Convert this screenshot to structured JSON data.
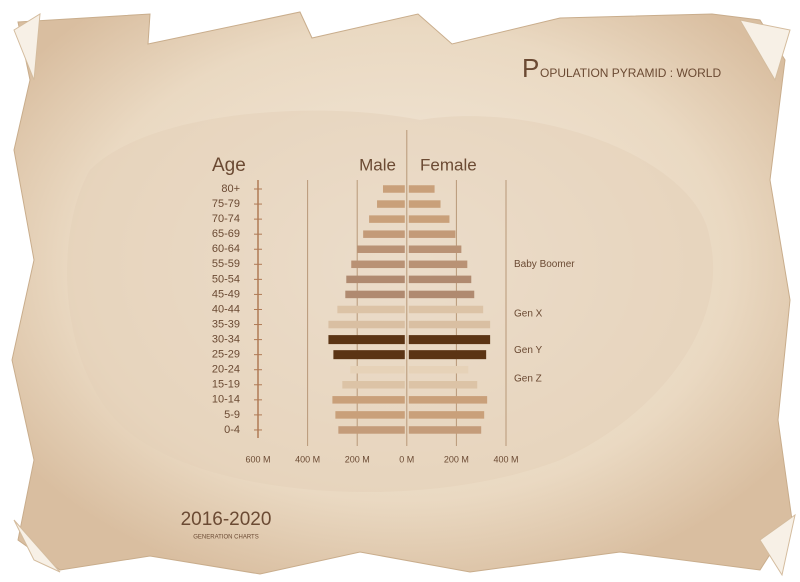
{
  "chart_data": {
    "type": "pyramid",
    "title_initial": "P",
    "title": "OPULATION PYRAMID : WORLD",
    "y_label": "Age",
    "categories": [
      "80+",
      "75-79",
      "70-74",
      "65-69",
      "60-64",
      "55-59",
      "50-54",
      "45-49",
      "40-44",
      "35-39",
      "30-34",
      "25-29",
      "20-24",
      "15-19",
      "10-14",
      "5-9",
      "0-4"
    ],
    "series": [
      {
        "name": "Male",
        "values": [
          96,
          120,
          152,
          176,
          200,
          224,
          244,
          248,
          280,
          316,
          316,
          296,
          228,
          260,
          300,
          288,
          276
        ]
      },
      {
        "name": "Female",
        "values": [
          112,
          136,
          172,
          196,
          220,
          244,
          260,
          272,
          308,
          336,
          336,
          320,
          248,
          284,
          324,
          312,
          300
        ]
      }
    ],
    "colors": [
      "#c9a07a",
      "#c9a07a",
      "#c9a07a",
      "#c39a78",
      "#b99275",
      "#b99275",
      "#b08a70",
      "#b08a70",
      "#dcc3a6",
      "#d9bfa2",
      "#5b3414",
      "#5b3414",
      "#e6d2b8",
      "#dcc3a6",
      "#c9a07a",
      "#c9a07a",
      "#c49c7a"
    ],
    "xlim": [
      -600,
      400
    ],
    "xticks": [
      {
        "value": -600,
        "label": "600 M"
      },
      {
        "value": -400,
        "label": "400 M"
      },
      {
        "value": -200,
        "label": "200 M"
      },
      {
        "value": 0,
        "label": "0 M"
      },
      {
        "value": 200,
        "label": "200 M"
      },
      {
        "value": 400,
        "label": "400 M"
      }
    ],
    "annotations": [
      "Baby Boomer",
      "Gen X",
      "Gen Y",
      "Gen Z"
    ],
    "footer_title": "2016-2020",
    "footer_subtitle": "GENERATION CHARTS"
  }
}
